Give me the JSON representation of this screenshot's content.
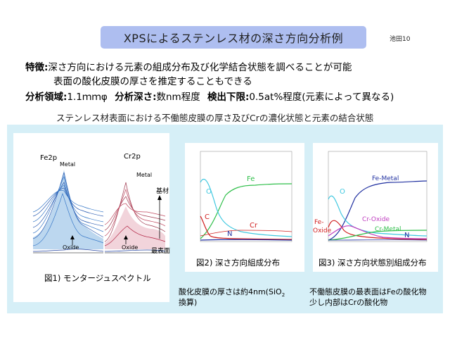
{
  "header": {
    "title": "XPSによるステンレス材の深さ方向分析例",
    "author": "池田10"
  },
  "features": {
    "label": "特徴:",
    "line1": "深さ方向における元素の組成分布及び化学結合状態を調べることが可能",
    "line2": "表面の酸化皮膜の厚さを推定することもできる"
  },
  "specs": {
    "area_label": "分析領域:",
    "area_value": "1.1ｍｍφ",
    "depth_label": "分析深さ:",
    "depth_value": "数nm程度",
    "limit_label": "検出下限:",
    "limit_value": "0.5at%程度(元素によって異なる)"
  },
  "main_caption": "ステンレス材表面における不働態皮膜の厚さ及びCrの濃化状態と元素の結合状態",
  "fig1": {
    "caption": "図1) モンタージュスペクトル",
    "fe_label": "Fe2p",
    "cr_label": "Cr2p",
    "fe_metal": "Metal",
    "cr_metal": "Metal",
    "fe_oxide": "Oxide",
    "cr_oxide": "Oxide",
    "base_label": "基材",
    "surface_label": "最表面"
  },
  "fig2": {
    "caption": "図2) 深さ方向組成分布",
    "labels": {
      "fe": "Fe",
      "o": "O",
      "c": "C",
      "cr": "Cr",
      "n": "N"
    },
    "note1": "酸化皮膜の厚さは約4nm(SiO",
    "note_sub": "2",
    "note2": "換算)"
  },
  "fig3": {
    "caption": "図3) 深さ方向状態別組成分布",
    "labels": {
      "fe_metal": "Fe-Metal",
      "o": "O",
      "fe_oxide_1": "Fe-",
      "fe_oxide_2": "Oxide",
      "cr_oxide": "Cr-Oxide",
      "cr_metal": "Cr-Metal",
      "n": "N"
    },
    "note1": "不働態皮膜の最表面はFeの酸化物",
    "note2": "少し内部はCrの酸化物"
  },
  "colors": {
    "title_bg": "#aebef0",
    "panel_bg": "#d6eff7",
    "green": "#2fbf4a",
    "cyan": "#40c8e0",
    "red": "#d02020",
    "blue": "#2030a0",
    "magenta": "#c040c0"
  }
}
